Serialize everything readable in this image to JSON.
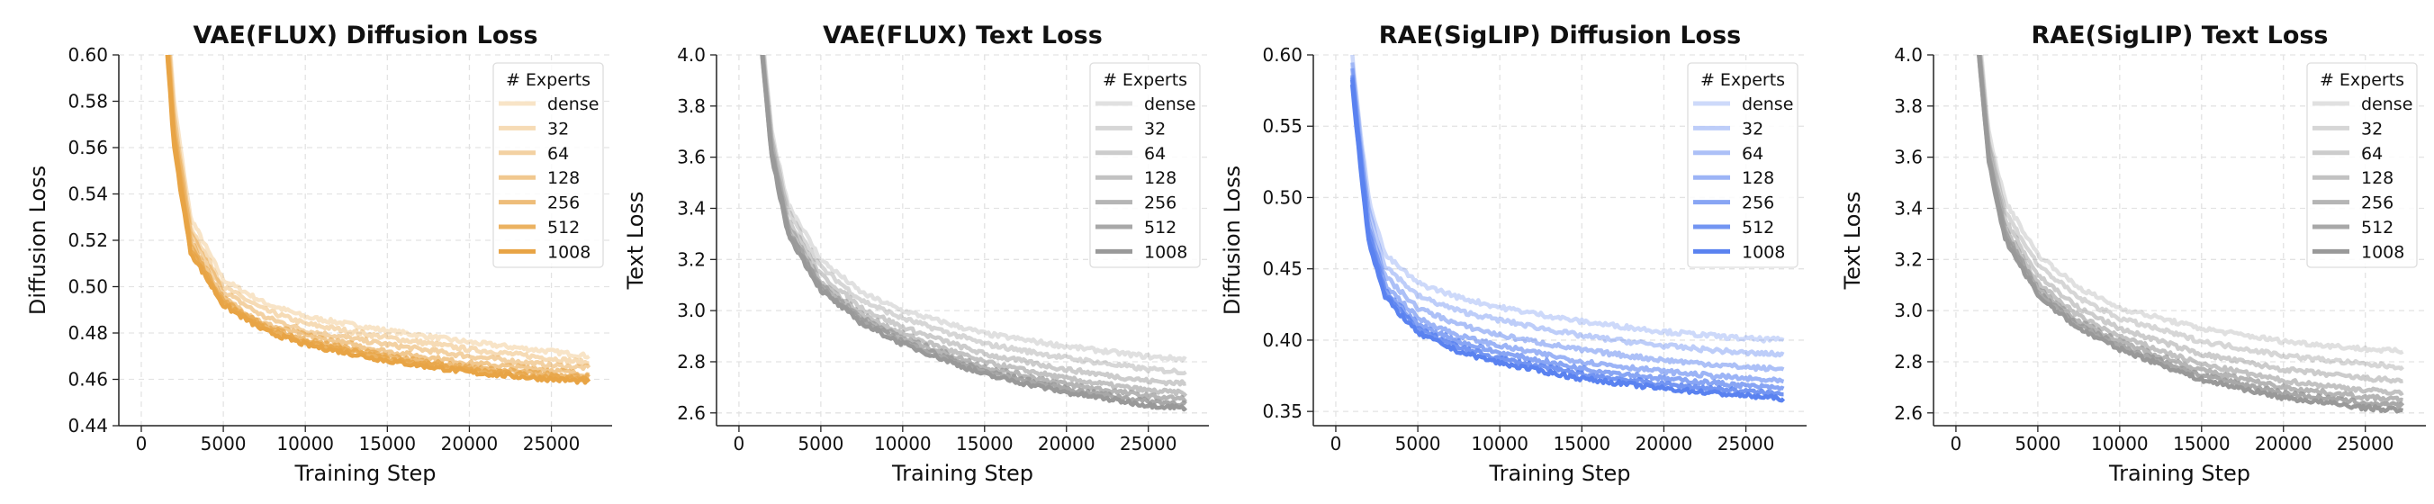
{
  "legend_title": "# Experts",
  "series_names": [
    "dense",
    "32",
    "64",
    "128",
    "256",
    "512",
    "1008"
  ],
  "colors": {
    "orange": "#e8a445",
    "gray": "#999999",
    "blue": "#5a82f0"
  },
  "chart_data": [
    {
      "type": "line",
      "title": "VAE(FLUX) Diffusion Loss",
      "xlabel": "Training Step",
      "ylabel": "Diffusion Loss",
      "xlim": [
        -1370,
        28700
      ],
      "ylim": [
        0.44,
        0.6
      ],
      "xticks": [
        0,
        5000,
        10000,
        15000,
        20000,
        25000
      ],
      "yticks": [
        "0.44",
        "0.46",
        "0.48",
        "0.50",
        "0.52",
        "0.54",
        "0.56",
        "0.58",
        "0.60"
      ],
      "grid": true,
      "legend": "top-right",
      "color": "orange",
      "x": [
        1000,
        2000,
        3000,
        5000,
        7500,
        10000,
        15000,
        20000,
        25000,
        27300
      ],
      "series": [
        {
          "name": "dense",
          "values": [
            0.68,
            0.58,
            0.53,
            0.503,
            0.493,
            0.487,
            0.481,
            0.476,
            0.472,
            0.47
          ]
        },
        {
          "name": "32",
          "values": [
            0.675,
            0.575,
            0.526,
            0.5,
            0.49,
            0.484,
            0.478,
            0.473,
            0.469,
            0.467
          ]
        },
        {
          "name": "64",
          "values": [
            0.67,
            0.57,
            0.523,
            0.498,
            0.487,
            0.481,
            0.475,
            0.47,
            0.466,
            0.465
          ]
        },
        {
          "name": "128",
          "values": [
            0.666,
            0.566,
            0.52,
            0.495,
            0.484,
            0.479,
            0.472,
            0.467,
            0.464,
            0.462
          ]
        },
        {
          "name": "256",
          "values": [
            0.664,
            0.564,
            0.518,
            0.494,
            0.483,
            0.477,
            0.47,
            0.465,
            0.462,
            0.461
          ]
        },
        {
          "name": "512",
          "values": [
            0.662,
            0.562,
            0.516,
            0.493,
            0.482,
            0.476,
            0.469,
            0.464,
            0.461,
            0.46
          ]
        },
        {
          "name": "1008",
          "values": [
            0.66,
            0.56,
            0.515,
            0.492,
            0.481,
            0.475,
            0.468,
            0.463,
            0.46,
            0.459
          ]
        }
      ]
    },
    {
      "type": "line",
      "title": "VAE(FLUX) Text Loss",
      "xlabel": "Training Step",
      "ylabel": "Text Loss",
      "xlim": [
        -1370,
        28700
      ],
      "ylim": [
        2.55,
        4.0
      ],
      "xticks": [
        0,
        5000,
        10000,
        15000,
        20000,
        25000
      ],
      "yticks": [
        "2.6",
        "2.8",
        "3.0",
        "3.2",
        "3.4",
        "3.6",
        "3.8",
        "4.0"
      ],
      "grid": true,
      "legend": "top-right",
      "color": "gray",
      "x": [
        1000,
        2000,
        3000,
        5000,
        7500,
        10000,
        15000,
        20000,
        25000,
        27300
      ],
      "series": [
        {
          "name": "dense",
          "values": [
            4.4,
            3.7,
            3.42,
            3.2,
            3.07,
            3.0,
            2.91,
            2.86,
            2.82,
            2.81
          ]
        },
        {
          "name": "32",
          "values": [
            4.375,
            3.675,
            3.39,
            3.17,
            3.04,
            2.97,
            2.87,
            2.815,
            2.77,
            2.76
          ]
        },
        {
          "name": "64",
          "values": [
            4.35,
            3.65,
            3.36,
            3.14,
            3.01,
            2.935,
            2.83,
            2.77,
            2.725,
            2.715
          ]
        },
        {
          "name": "128",
          "values": [
            4.33,
            3.63,
            3.336,
            3.116,
            2.986,
            2.909,
            2.798,
            2.734,
            2.687,
            2.677
          ]
        },
        {
          "name": "256",
          "values": [
            4.318,
            3.618,
            3.322,
            3.102,
            2.972,
            2.893,
            2.779,
            2.712,
            2.665,
            2.654
          ]
        },
        {
          "name": "512",
          "values": [
            4.308,
            3.608,
            3.31,
            3.09,
            2.96,
            2.88,
            2.763,
            2.694,
            2.645,
            2.635
          ]
        },
        {
          "name": "1008",
          "values": [
            4.3,
            3.6,
            3.3,
            3.08,
            2.95,
            2.87,
            2.75,
            2.68,
            2.63,
            2.62
          ]
        }
      ]
    },
    {
      "type": "line",
      "title": "RAE(SigLIP) Diffusion Loss",
      "xlabel": "Training Step",
      "ylabel": "Diffusion Loss",
      "xlim": [
        -1370,
        28700
      ],
      "ylim": [
        0.34,
        0.6
      ],
      "xticks": [
        0,
        5000,
        10000,
        15000,
        20000,
        25000
      ],
      "yticks": [
        "0.35",
        "0.40",
        "0.45",
        "0.50",
        "0.55",
        "0.60"
      ],
      "grid": true,
      "legend": "top-right",
      "color": "blue",
      "x": [
        1000,
        2000,
        3000,
        5000,
        7500,
        10000,
        15000,
        20000,
        25000,
        27300
      ],
      "series": [
        {
          "name": "dense",
          "values": [
            0.6,
            0.5,
            0.46,
            0.44,
            0.43,
            0.423,
            0.413,
            0.406,
            0.401,
            0.4
          ]
        },
        {
          "name": "32",
          "values": [
            0.595,
            0.4925,
            0.4525,
            0.431,
            0.4205,
            0.414,
            0.403,
            0.396,
            0.391,
            0.39
          ]
        },
        {
          "name": "64",
          "values": [
            0.59,
            0.485,
            0.445,
            0.4225,
            0.411,
            0.4035,
            0.393,
            0.386,
            0.381,
            0.3795
          ]
        },
        {
          "name": "128",
          "values": [
            0.586,
            0.479,
            0.439,
            0.4155,
            0.403,
            0.396,
            0.385,
            0.378,
            0.373,
            0.371
          ]
        },
        {
          "name": "256",
          "values": [
            0.584,
            0.475,
            0.435,
            0.411,
            0.399,
            0.391,
            0.38,
            0.373,
            0.368,
            0.366
          ]
        },
        {
          "name": "512",
          "values": [
            0.582,
            0.472,
            0.432,
            0.408,
            0.395,
            0.387,
            0.376,
            0.369,
            0.364,
            0.362
          ]
        },
        {
          "name": "1008",
          "values": [
            0.58,
            0.47,
            0.43,
            0.405,
            0.392,
            0.384,
            0.373,
            0.366,
            0.361,
            0.359
          ]
        }
      ]
    },
    {
      "type": "line",
      "title": "RAE(SigLIP) Text Loss",
      "xlabel": "Training Step",
      "ylabel": "Text Loss",
      "xlim": [
        -1370,
        28700
      ],
      "ylim": [
        2.55,
        4.0
      ],
      "xticks": [
        0,
        5000,
        10000,
        15000,
        20000,
        25000
      ],
      "yticks": [
        "2.6",
        "2.8",
        "3.0",
        "3.2",
        "3.4",
        "3.6",
        "3.8",
        "4.0"
      ],
      "grid": true,
      "legend": "top-right",
      "color": "gray",
      "x": [
        1000,
        2000,
        3000,
        5000,
        7500,
        10000,
        15000,
        20000,
        25000,
        27300
      ],
      "series": [
        {
          "name": "dense",
          "values": [
            4.4,
            3.7,
            3.43,
            3.22,
            3.09,
            3.01,
            2.93,
            2.88,
            2.85,
            2.84
          ]
        },
        {
          "name": "32",
          "values": [
            4.375,
            3.67,
            3.39,
            3.18,
            3.05,
            2.97,
            2.88,
            2.825,
            2.79,
            2.78
          ]
        },
        {
          "name": "64",
          "values": [
            4.35,
            3.64,
            3.355,
            3.14,
            3.01,
            2.93,
            2.83,
            2.77,
            2.735,
            2.725
          ]
        },
        {
          "name": "128",
          "values": [
            4.33,
            3.616,
            3.325,
            3.108,
            2.978,
            2.898,
            2.79,
            2.726,
            2.689,
            2.679
          ]
        },
        {
          "name": "256",
          "values": [
            4.318,
            3.602,
            3.307,
            3.089,
            2.959,
            2.879,
            2.766,
            2.7,
            2.661,
            2.651
          ]
        },
        {
          "name": "512",
          "values": [
            4.308,
            3.59,
            3.292,
            3.073,
            2.943,
            2.863,
            2.746,
            2.678,
            2.638,
            2.628
          ]
        },
        {
          "name": "1008",
          "values": [
            4.3,
            3.58,
            3.28,
            3.06,
            2.93,
            2.85,
            2.73,
            2.66,
            2.62,
            2.61
          ]
        }
      ]
    }
  ]
}
